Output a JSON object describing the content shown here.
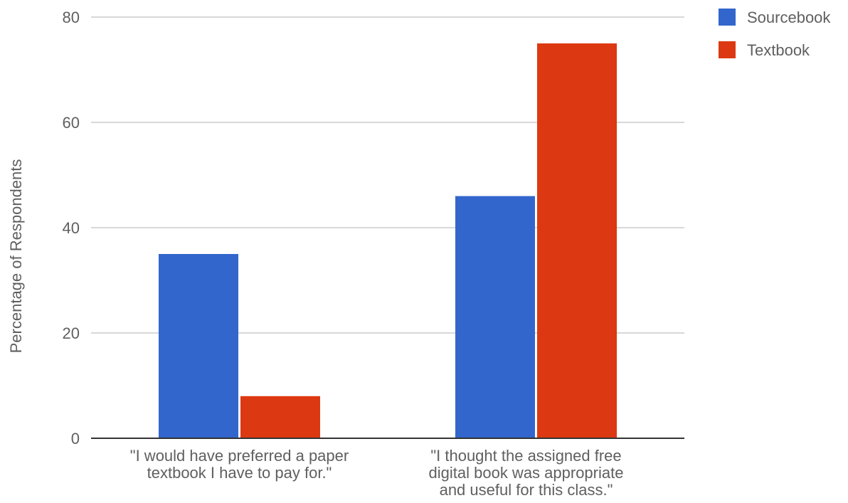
{
  "chart_data": {
    "type": "bar",
    "title": "",
    "xlabel": "",
    "ylabel": "Percentage of Respondents",
    "ylim": [
      0,
      80
    ],
    "yticks": [
      0,
      20,
      40,
      60,
      80
    ],
    "grid": true,
    "legend_position": "top-right",
    "categories": [
      [
        "\"I would have preferred a paper",
        "textbook I have to pay for.\""
      ],
      [
        "\"I thought the assigned free",
        "digital book was appropriate",
        "and useful for this class.\""
      ]
    ],
    "series": [
      {
        "name": "Sourcebook",
        "color": "#3366cc",
        "values": [
          35,
          46
        ]
      },
      {
        "name": "Textbook",
        "color": "#dc3912",
        "values": [
          8,
          75
        ]
      }
    ]
  }
}
